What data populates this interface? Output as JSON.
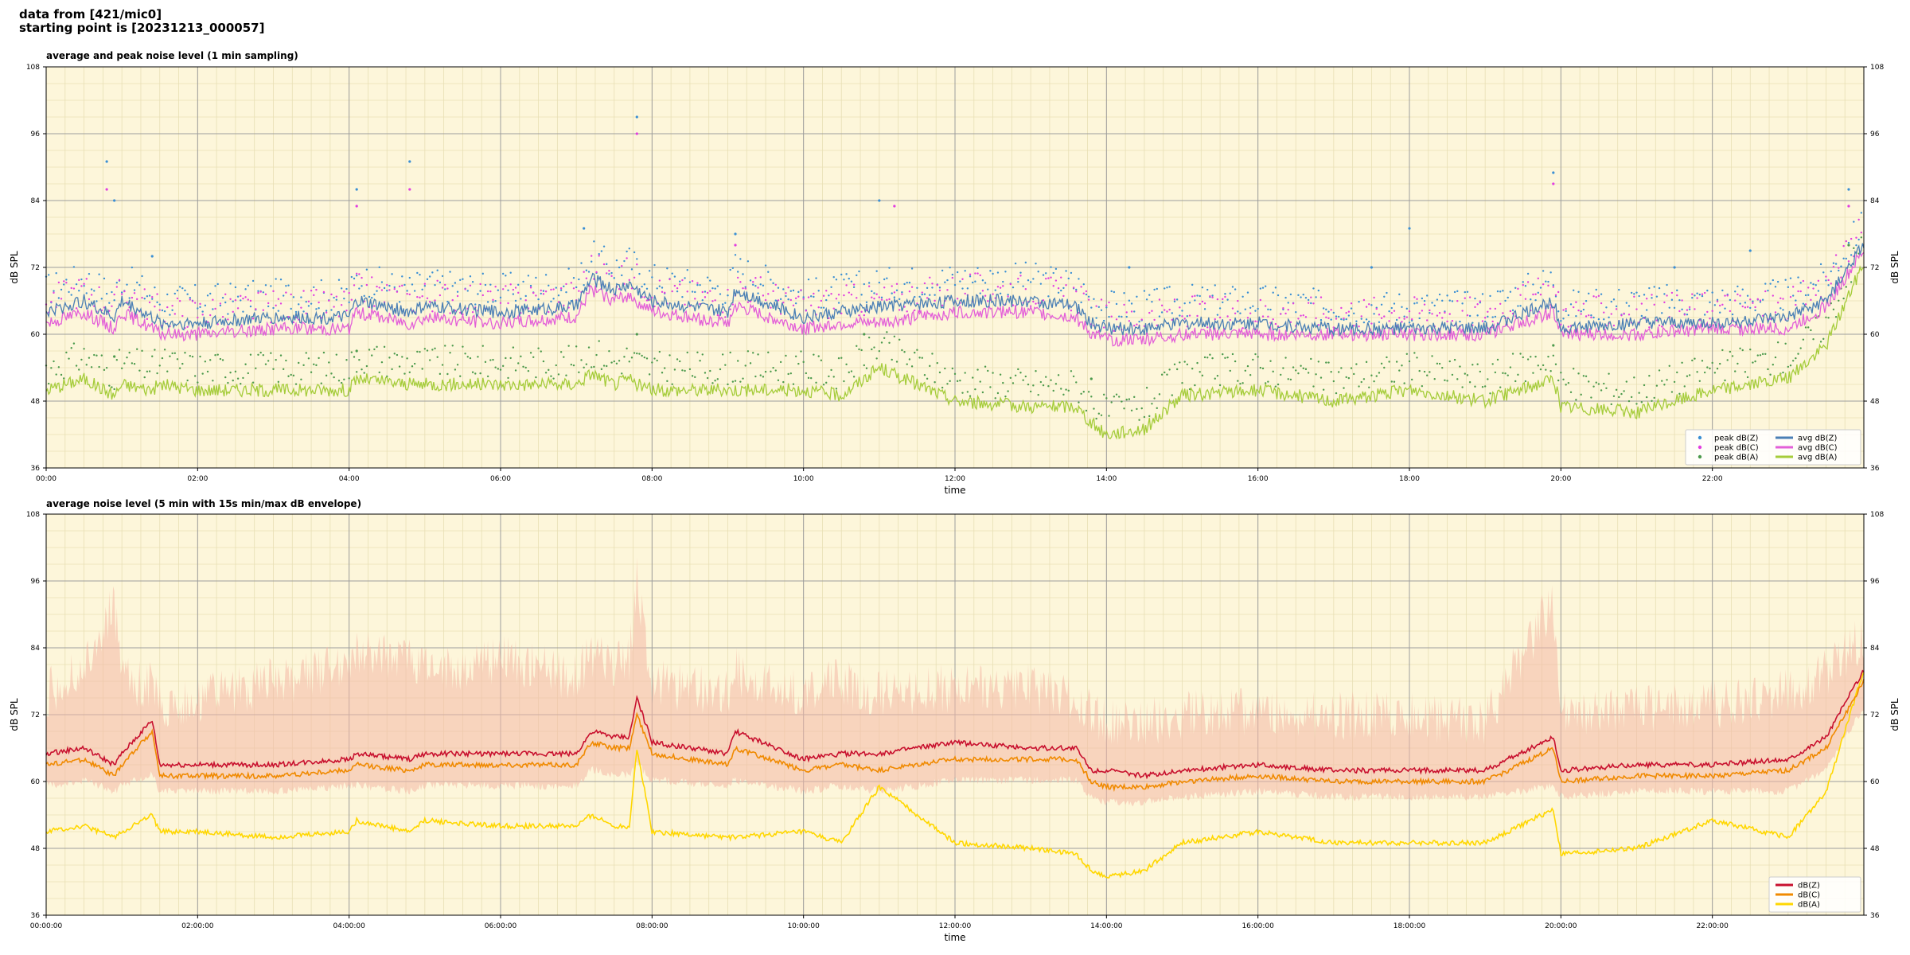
{
  "header": {
    "line1": "data from [421/mic0]",
    "line2": "starting point is [20231213_000057]"
  },
  "colors": {
    "background": "#fdf6da",
    "zone_main": "#9d9d9d",
    "zone_minor": "#e8dfb5",
    "peak_z": "#3a8fd4",
    "peak_c": "#e23ee0",
    "peak_a": "#4c9a4c",
    "avg_z": "#4a7fb5",
    "avg_c": "#e35fd8",
    "avg_a": "#a5cc3a",
    "db_z": "#c8102e",
    "db_c": "#f08a00",
    "db_a": "#ffd700",
    "envelope": "#f4b8a6"
  },
  "chart_data": [
    {
      "type": "line",
      "title": "average and peak noise level (1 min sampling)",
      "xlabel": "time",
      "ylabel": "dB SPL",
      "xlim": [
        0,
        24
      ],
      "ylim": [
        36,
        108
      ],
      "yticks": [
        "36",
        "48",
        "60",
        "72",
        "84",
        "96",
        "108"
      ],
      "xticks": [
        "00:00",
        "02:00",
        "04:00",
        "06:00",
        "08:00",
        "10:00",
        "12:00",
        "14:00",
        "16:00",
        "18:00",
        "20:00",
        "22:00"
      ],
      "grid": true,
      "legend_position": "lower-right",
      "legend": [
        {
          "label": "peak dB(Z)",
          "kind": "dot",
          "color_key": "peak_z"
        },
        {
          "label": "peak dB(C)",
          "kind": "dot",
          "color_key": "peak_c"
        },
        {
          "label": "peak dB(A)",
          "kind": "dot",
          "color_key": "peak_a"
        },
        {
          "label": "avg dB(Z)",
          "kind": "line",
          "color_key": "avg_z"
        },
        {
          "label": "avg dB(C)",
          "kind": "line",
          "color_key": "avg_c"
        },
        {
          "label": "avg dB(A)",
          "kind": "line",
          "color_key": "avg_a"
        }
      ],
      "x": [
        0,
        0.5,
        0.9,
        1,
        1.4,
        1.5,
        2,
        3,
        4,
        4.1,
        4.8,
        5,
        6,
        7,
        7.2,
        7.5,
        7.7,
        7.8,
        8,
        9,
        9.1,
        10,
        10.5,
        11,
        12,
        13,
        13.6,
        13.8,
        14,
        14.5,
        15,
        16,
        17,
        18,
        19,
        19.9,
        20,
        21,
        22,
        23,
        23.5,
        24
      ],
      "series": [
        {
          "name": "avg dB(Z)",
          "values": [
            64,
            66,
            63,
            66,
            63,
            62,
            62,
            63,
            63,
            66,
            64,
            65,
            64,
            65,
            70,
            68,
            69,
            68,
            66,
            64,
            68,
            63,
            64,
            65,
            66,
            66,
            65,
            62,
            61,
            61,
            62,
            62,
            61,
            61,
            61,
            66,
            61,
            62,
            62,
            63,
            66,
            76
          ]
        },
        {
          "name": "avg dB(C)",
          "values": [
            62,
            64,
            61,
            64,
            61,
            60,
            60,
            61,
            61,
            64,
            62,
            63,
            62,
            63,
            68,
            66,
            67,
            66,
            64,
            62,
            65,
            61,
            62,
            62,
            64,
            64,
            63,
            60,
            59,
            59,
            60,
            60,
            60,
            60,
            60,
            64,
            60,
            60,
            61,
            61,
            65,
            75
          ]
        },
        {
          "name": "avg dB(A)",
          "values": [
            50,
            52,
            49,
            51,
            50,
            51,
            50,
            50,
            50,
            52,
            51,
            51,
            51,
            51,
            53,
            51,
            52,
            51,
            50,
            50,
            50,
            50,
            49,
            54,
            48,
            47,
            47,
            44,
            42,
            43,
            49,
            50,
            48,
            50,
            48,
            52,
            47,
            46,
            50,
            52,
            58,
            73
          ]
        }
      ],
      "peaks": [
        {
          "name": "peak dB(Z)",
          "points": [
            [
              0.8,
              91
            ],
            [
              0.9,
              84
            ],
            [
              1.4,
              74
            ],
            [
              4.1,
              86
            ],
            [
              4.8,
              91
            ],
            [
              7.1,
              79
            ],
            [
              7.8,
              99
            ],
            [
              9.1,
              78
            ],
            [
              11,
              84
            ],
            [
              14.3,
              72
            ],
            [
              17.5,
              72
            ],
            [
              18,
              79
            ],
            [
              19.9,
              89
            ],
            [
              21.5,
              72
            ],
            [
              22.5,
              75
            ],
            [
              23.8,
              86
            ]
          ]
        },
        {
          "name": "peak dB(C)",
          "points": [
            [
              0.8,
              86
            ],
            [
              4.1,
              83
            ],
            [
              4.8,
              86
            ],
            [
              7.8,
              96
            ],
            [
              9.1,
              76
            ],
            [
              11.2,
              83
            ],
            [
              19.9,
              87
            ],
            [
              23.8,
              83
            ]
          ]
        },
        {
          "name": "peak dB(A)",
          "points": [
            [
              0.9,
              56
            ],
            [
              4.1,
              57
            ],
            [
              7.8,
              60
            ],
            [
              10.8,
              60
            ],
            [
              13.8,
              52
            ],
            [
              19.9,
              58
            ],
            [
              23.8,
              76
            ]
          ]
        }
      ]
    },
    {
      "type": "line",
      "title": "average noise level (5 min with 15s min/max dB envelope)",
      "xlabel": "time",
      "ylabel": "dB SPL",
      "xlim": [
        0,
        24
      ],
      "ylim": [
        36,
        108
      ],
      "yticks": [
        "36",
        "48",
        "60",
        "72",
        "84",
        "96",
        "108"
      ],
      "xticks": [
        "00:00:00",
        "02:00:00",
        "04:00:00",
        "06:00:00",
        "08:00:00",
        "10:00:00",
        "12:00:00",
        "14:00:00",
        "16:00:00",
        "18:00:00",
        "20:00:00",
        "22:00:00"
      ],
      "grid": true,
      "legend_position": "lower-right",
      "legend": [
        {
          "label": "dB(Z)",
          "kind": "line",
          "color_key": "db_z"
        },
        {
          "label": "dB(C)",
          "kind": "line",
          "color_key": "db_c"
        },
        {
          "label": "dB(A)",
          "kind": "line",
          "color_key": "db_a"
        }
      ],
      "x": [
        0,
        0.5,
        0.9,
        1,
        1.4,
        1.5,
        2,
        3,
        4,
        4.1,
        4.8,
        5,
        6,
        7,
        7.2,
        7.5,
        7.7,
        7.8,
        8,
        9,
        9.1,
        10,
        10.5,
        11,
        12,
        13,
        13.6,
        13.8,
        14,
        14.5,
        15,
        16,
        17,
        18,
        19,
        19.9,
        20,
        21,
        22,
        23,
        23.5,
        24
      ],
      "series": [
        {
          "name": "dB(Z)",
          "values": [
            65,
            66,
            63,
            65,
            71,
            63,
            63,
            63,
            64,
            65,
            64,
            65,
            65,
            65,
            69,
            68,
            68,
            75,
            67,
            65,
            69,
            64,
            65,
            65,
            67,
            66,
            66,
            62,
            62,
            61,
            62,
            63,
            62,
            62,
            62,
            68,
            62,
            63,
            63,
            64,
            68,
            80
          ]
        },
        {
          "name": "dB(C)",
          "values": [
            63,
            64,
            61,
            63,
            69,
            61,
            61,
            61,
            62,
            63,
            62,
            63,
            63,
            63,
            67,
            66,
            66,
            72,
            65,
            63,
            66,
            62,
            63,
            62,
            64,
            64,
            64,
            60,
            59,
            59,
            60,
            61,
            60,
            60,
            60,
            66,
            60,
            61,
            61,
            62,
            66,
            78
          ]
        },
        {
          "name": "dB(A)",
          "values": [
            51,
            52,
            50,
            51,
            54,
            51,
            51,
            50,
            51,
            53,
            51,
            53,
            52,
            52,
            54,
            52,
            52,
            66,
            51,
            50,
            50,
            51,
            49,
            59,
            49,
            48,
            47,
            44,
            43,
            44,
            49,
            51,
            49,
            49,
            49,
            55,
            47,
            48,
            53,
            50,
            58,
            80
          ]
        }
      ],
      "envelope": {
        "lower": [
          60,
          61,
          59,
          60,
          62,
          59,
          59,
          59,
          60,
          60,
          59,
          60,
          60,
          60,
          63,
          62,
          62,
          64,
          61,
          60,
          61,
          59,
          60,
          59,
          61,
          61,
          61,
          58,
          57,
          57,
          58,
          59,
          58,
          58,
          58,
          60,
          58,
          59,
          59,
          59,
          63,
          74
        ],
        "upper": [
          74,
          78,
          90,
          76,
          76,
          72,
          73,
          76,
          79,
          82,
          80,
          78,
          80,
          77,
          81,
          79,
          80,
          94,
          76,
          74,
          78,
          74,
          76,
          74,
          75,
          75,
          73,
          70,
          69,
          69,
          70,
          71,
          70,
          70,
          69,
          91,
          70,
          71,
          72,
          74,
          78,
          84
        ]
      }
    }
  ]
}
